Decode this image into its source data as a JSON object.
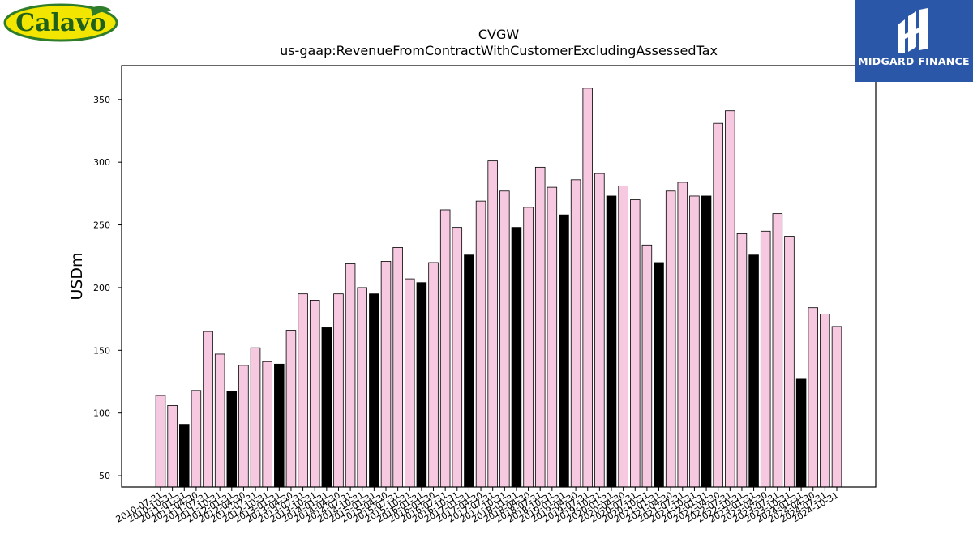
{
  "logos": {
    "left_text": "Calavo",
    "right_text": "MIDGARD FINANCE"
  },
  "chart_data": {
    "type": "bar",
    "title": "CVGW",
    "subtitle": "us-gaap:RevenueFromContractWithCustomerExcludingAssessedTax",
    "xlabel": "",
    "ylabel": "USDm",
    "ylim": [
      41,
      377
    ],
    "yticks": [
      50,
      100,
      150,
      200,
      250,
      300,
      350
    ],
    "grid": false,
    "colors": {
      "pink": "#f7c9e0",
      "black": "#000000",
      "edge": "#000000"
    },
    "categories": [
      "2010-07-31",
      "2010-10-31",
      "2011-01-31",
      "2011-04-30",
      "2011-07-31",
      "2011-10-31",
      "2012-01-31",
      "2012-04-30",
      "2012-07-31",
      "2012-10-31",
      "2013-01-31",
      "2013-04-30",
      "2013-07-31",
      "2013-10-31",
      "2014-01-31",
      "2014-04-30",
      "2014-07-31",
      "2014-10-31",
      "2015-01-31",
      "2015-04-30",
      "2015-07-31",
      "2015-10-31",
      "2016-01-31",
      "2016-04-30",
      "2016-07-31",
      "2016-10-31",
      "2017-01-31",
      "2017-04-30",
      "2017-07-31",
      "2017-10-31",
      "2018-01-31",
      "2018-04-30",
      "2018-07-31",
      "2018-10-31",
      "2019-01-31",
      "2019-04-30",
      "2019-07-31",
      "2019-10-31",
      "2020-01-31",
      "2020-04-30",
      "2020-07-31",
      "2020-10-31",
      "2021-01-31",
      "2021-04-30",
      "2021-07-31",
      "2021-10-31",
      "2022-01-31",
      "2022-04-30",
      "2022-07-31",
      "2022-10-31",
      "2023-01-31",
      "2023-04-30",
      "2023-07-31",
      "2023-10-31",
      "2024-01-31",
      "2024-04-30",
      "2024-07-31",
      "2024-10-31"
    ],
    "values": [
      114,
      106,
      91,
      118,
      165,
      147,
      117,
      138,
      152,
      141,
      139,
      166,
      195,
      190,
      168,
      195,
      219,
      200,
      195,
      221,
      232,
      207,
      204,
      220,
      262,
      248,
      226,
      269,
      301,
      277,
      248,
      264,
      296,
      280,
      258,
      286,
      359,
      291,
      273,
      281,
      270,
      234,
      220,
      277,
      284,
      273,
      273,
      331,
      341,
      243,
      226,
      245,
      259,
      241,
      127,
      184,
      179,
      169
    ],
    "highlight_black": [
      2,
      6,
      10,
      14,
      18,
      22,
      26,
      30,
      34,
      38,
      42,
      46,
      50,
      54
    ]
  }
}
